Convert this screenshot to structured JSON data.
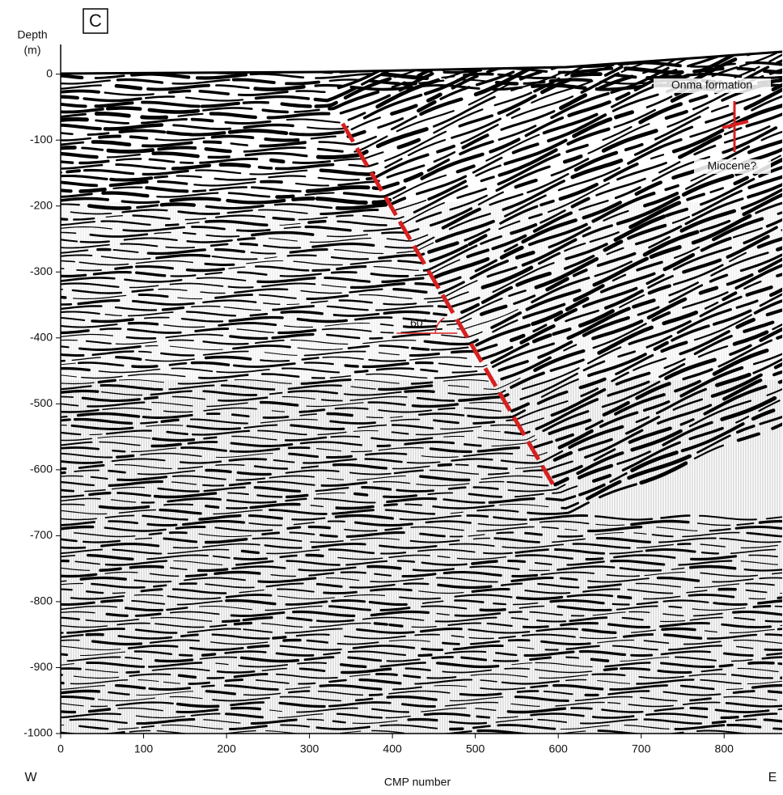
{
  "chart_data": {
    "type": "seismic",
    "panel_label": "C",
    "ylabel": [
      "Depth",
      "(m)"
    ],
    "xlabel": "CMP number",
    "direction_labels": [
      "W",
      "E"
    ],
    "xlim": [
      0,
      870
    ],
    "xticks": [
      0,
      100,
      200,
      300,
      400,
      500,
      600,
      700,
      800
    ],
    "ylim": [
      -1000,
      45
    ],
    "yticks": [
      0,
      -100,
      -200,
      -300,
      -400,
      -500,
      -600,
      -700,
      -800,
      -900,
      -1000
    ],
    "lines": [
      {
        "x": [
          340,
          595
        ],
        "values": [
          -75,
          -625
        ],
        "color": "#d62020",
        "dashed": true
      }
    ],
    "annotations": [
      "Onma formation",
      "Miocene?",
      "60°"
    ]
  }
}
